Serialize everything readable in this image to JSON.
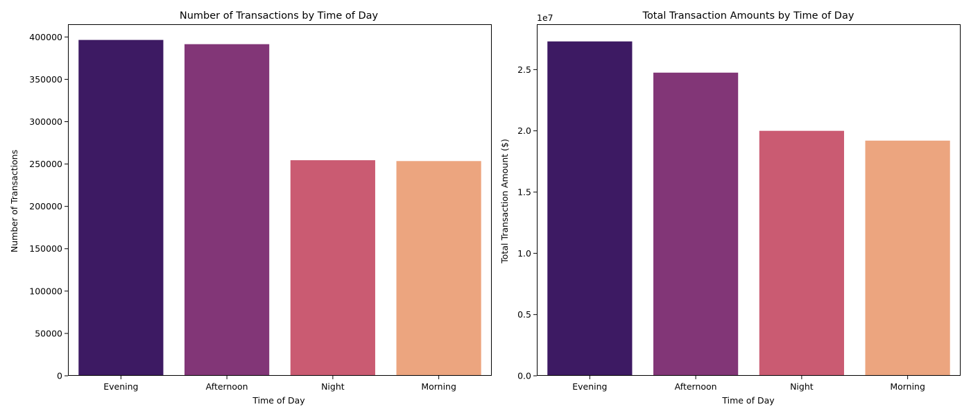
{
  "chart_data": [
    {
      "type": "bar",
      "title": "Number of Transactions by Time of Day",
      "xlabel": "Time of Day",
      "ylabel": "Number of Transactions",
      "categories": [
        "Evening",
        "Afternoon",
        "Night",
        "Morning"
      ],
      "values": [
        396500,
        391500,
        254500,
        253500
      ],
      "ylim": [
        0,
        415000
      ],
      "yticks": [
        0,
        50000,
        100000,
        150000,
        200000,
        250000,
        300000,
        350000,
        400000
      ],
      "ytick_labels": [
        "0",
        "50000",
        "100000",
        "150000",
        "200000",
        "250000",
        "300000",
        "350000",
        "400000"
      ],
      "offset_label": "",
      "colors": [
        "#3d1a63",
        "#823677",
        "#ca5b72",
        "#eca57f"
      ],
      "grid": false,
      "legend": "none"
    },
    {
      "type": "bar",
      "title": "Total Transaction Amounts by Time of Day",
      "xlabel": "Time of Day",
      "ylabel": "Total Transaction Amount ($)",
      "categories": [
        "Evening",
        "Afternoon",
        "Night",
        "Morning"
      ],
      "values": [
        27300000,
        24750000,
        20000000,
        19200000
      ],
      "ylim": [
        0,
        28700000
      ],
      "yticks": [
        0,
        5000000,
        10000000,
        15000000,
        20000000,
        25000000
      ],
      "ytick_labels": [
        "0.0",
        "0.5",
        "1.0",
        "1.5",
        "2.0",
        "2.5"
      ],
      "offset_label": "1e7",
      "colors": [
        "#3d1a63",
        "#823677",
        "#ca5b72",
        "#eca57f"
      ],
      "grid": false,
      "legend": "none"
    }
  ]
}
